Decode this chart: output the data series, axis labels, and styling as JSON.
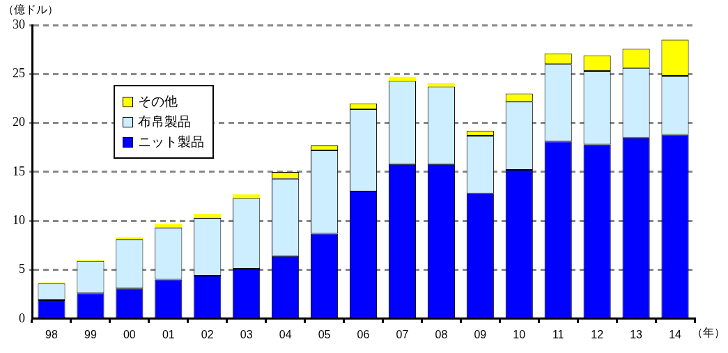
{
  "chart_data": {
    "type": "bar",
    "stacked": true,
    "ylabel": "（億ドル）",
    "xlabel": "（年）",
    "categories": [
      "98",
      "99",
      "00",
      "01",
      "02",
      "03",
      "04",
      "05",
      "06",
      "07",
      "08",
      "09",
      "10",
      "11",
      "12",
      "13",
      "14"
    ],
    "series": [
      {
        "name": "ニット製品",
        "color": "#0000ff",
        "values": [
          1.9,
          2.6,
          3.1,
          4.0,
          4.4,
          5.1,
          6.4,
          8.7,
          13.0,
          15.8,
          15.8,
          12.8,
          15.2,
          18.1,
          17.8,
          18.5,
          18.8
        ]
      },
      {
        "name": "布帛製品",
        "color": "#cceeff",
        "values": [
          1.7,
          3.3,
          5.0,
          5.3,
          5.9,
          7.2,
          7.9,
          8.5,
          8.4,
          8.5,
          7.9,
          5.9,
          7.0,
          7.9,
          7.5,
          7.1,
          6.0
        ]
      },
      {
        "name": "その他",
        "color": "#ffff00",
        "values": [
          0.1,
          0.1,
          0.2,
          0.4,
          0.4,
          0.4,
          0.7,
          0.5,
          0.6,
          0.4,
          0.4,
          0.5,
          0.8,
          1.1,
          1.6,
          2.0,
          3.7
        ]
      }
    ],
    "ylim": [
      0,
      30
    ],
    "yticks": [
      0,
      5,
      10,
      15,
      20,
      25,
      30
    ],
    "grid": "y",
    "legend": "top left"
  }
}
